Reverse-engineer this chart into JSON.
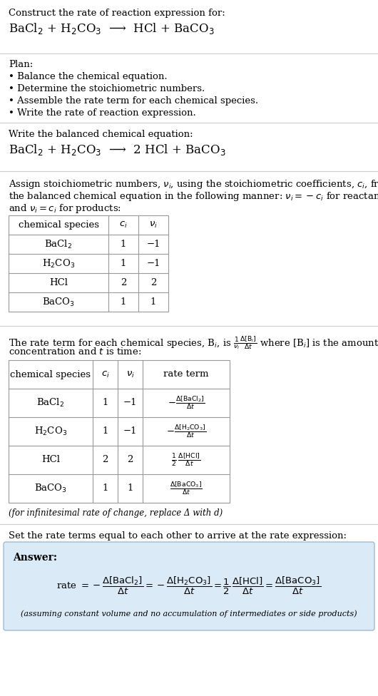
{
  "title_line1": "Construct the rate of reaction expression for:",
  "title_line2": "BaCl$_2$ + H$_2$CO$_3$  ⟶  HCl + BaCO$_3$",
  "plan_header": "Plan:",
  "plan_items": [
    "• Balance the chemical equation.",
    "• Determine the stoichiometric numbers.",
    "• Assemble the rate term for each chemical species.",
    "• Write the rate of reaction expression."
  ],
  "balanced_header": "Write the balanced chemical equation:",
  "balanced_eq": "BaCl$_2$ + H$_2$CO$_3$  ⟶  2 HCl + BaCO$_3$",
  "stoich_intro_1": "Assign stoichiometric numbers, $\\nu_i$, using the stoichiometric coefficients, $c_i$, from",
  "stoich_intro_2": "the balanced chemical equation in the following manner: $\\nu_i = -c_i$ for reactants",
  "stoich_intro_3": "and $\\nu_i = c_i$ for products:",
  "table1_headers": [
    "chemical species",
    "$c_i$",
    "$\\nu_i$"
  ],
  "table1_rows": [
    [
      "BaCl$_2$",
      "1",
      "−1"
    ],
    [
      "H$_2$CO$_3$",
      "1",
      "−1"
    ],
    [
      "HCl",
      "2",
      "2"
    ],
    [
      "BaCO$_3$",
      "1",
      "1"
    ]
  ],
  "rate_intro_1": "The rate term for each chemical species, B$_i$, is $\\frac{1}{\\nu_i}\\frac{\\Delta[\\mathrm{B}_i]}{\\Delta t}$ where [B$_i$] is the amount",
  "rate_intro_2": "concentration and $t$ is time:",
  "table2_headers": [
    "chemical species",
    "$c_i$",
    "$\\nu_i$",
    "rate term"
  ],
  "table2_rows": [
    [
      "BaCl$_2$",
      "1",
      "−1",
      "$-\\frac{\\Delta[\\mathrm{BaCl_2}]}{\\Delta t}$"
    ],
    [
      "H$_2$CO$_3$",
      "1",
      "−1",
      "$-\\frac{\\Delta[\\mathrm{H_2CO_3}]}{\\Delta t}$"
    ],
    [
      "HCl",
      "2",
      "2",
      "$\\frac{1}{2}\\,\\frac{\\Delta[\\mathrm{HCl}]}{\\Delta t}$"
    ],
    [
      "BaCO$_3$",
      "1",
      "1",
      "$\\frac{\\Delta[\\mathrm{BaCO_3}]}{\\Delta t}$"
    ]
  ],
  "infinitesimal_note": "(for infinitesimal rate of change, replace Δ with d)",
  "set_equal_text": "Set the rate terms equal to each other to arrive at the rate expression:",
  "answer_label": "Answer:",
  "rate_expression": "rate $= -\\dfrac{\\Delta[\\mathrm{BaCl_2}]}{\\Delta t} = -\\dfrac{\\Delta[\\mathrm{H_2CO_3}]}{\\Delta t} = \\dfrac{1}{2}\\,\\dfrac{\\Delta[\\mathrm{HCl}]}{\\Delta t} = \\dfrac{\\Delta[\\mathrm{BaCO_3}]}{\\Delta t}$",
  "assumption_note": "(assuming constant volume and no accumulation of intermediates or side products)",
  "bg_color": "#ffffff",
  "answer_box_color": "#daeaf7",
  "table_line_color": "#999999",
  "sep_line_color": "#cccccc",
  "text_color": "#000000",
  "fs": 9.5
}
